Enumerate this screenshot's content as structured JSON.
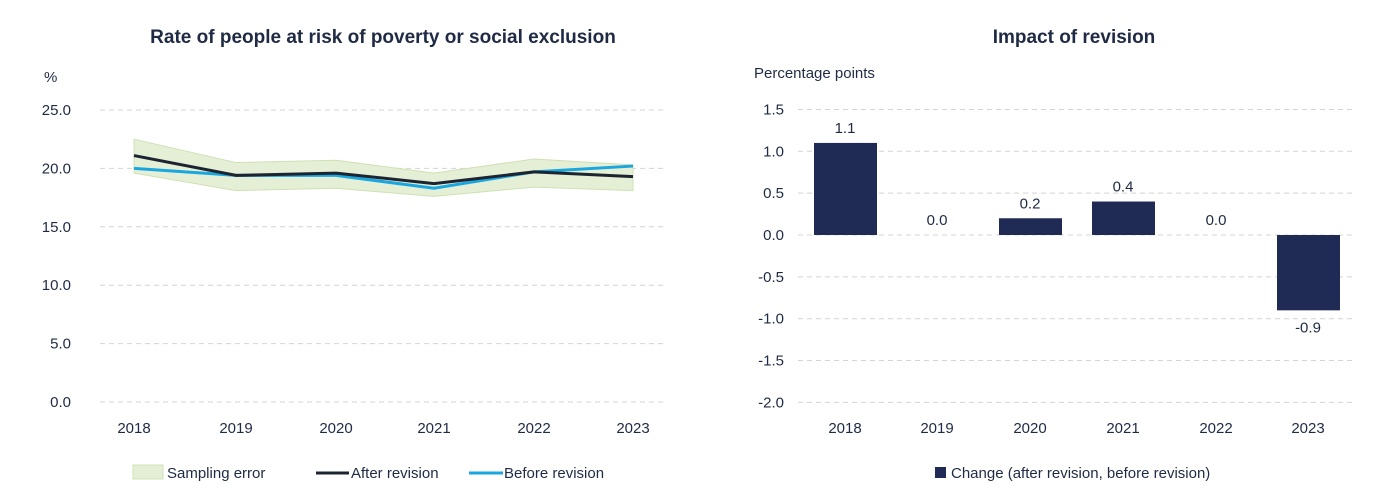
{
  "chart_data": [
    {
      "type": "line",
      "title": "Rate of people at risk of poverty or social exclusion",
      "ylabel": "%",
      "ylim": [
        0,
        25
      ],
      "yticks": [
        "0.0",
        "5.0",
        "10.0",
        "15.0",
        "20.0",
        "25.0"
      ],
      "categories": [
        "2018",
        "2019",
        "2020",
        "2021",
        "2022",
        "2023"
      ],
      "series": [
        {
          "name": "Sampling error",
          "type": "band",
          "upper": [
            22.5,
            20.5,
            20.7,
            19.6,
            20.8,
            20.3
          ],
          "lower": [
            19.6,
            18.1,
            18.3,
            17.6,
            18.4,
            18.1
          ],
          "color": "#e4efd6"
        },
        {
          "name": "After revision",
          "values": [
            21.1,
            19.4,
            19.6,
            18.7,
            19.7,
            19.3
          ],
          "color": "#1c2331"
        },
        {
          "name": "Before revision",
          "values": [
            20.0,
            19.4,
            19.4,
            18.3,
            19.7,
            20.2
          ],
          "color": "#1aa7e0"
        }
      ],
      "legend": "bottom"
    },
    {
      "type": "bar",
      "title": "Impact of revision",
      "ylabel": "Percentage points",
      "ylim": [
        -2,
        1.5
      ],
      "yticks": [
        "-2.0",
        "-1.5",
        "-1.0",
        "-0.5",
        "0.0",
        "0.5",
        "1.0",
        "1.5"
      ],
      "categories": [
        "2018",
        "2019",
        "2020",
        "2021",
        "2022",
        "2023"
      ],
      "series": [
        {
          "name": "Change (after revision, before revision)",
          "values": [
            1.1,
            0.0,
            0.2,
            0.4,
            0.0,
            -0.9
          ],
          "labels": [
            "1.1",
            "0.0",
            "0.2",
            "0.4",
            "0.0",
            "-0.9"
          ],
          "color": "#1f2a55"
        }
      ],
      "legend": "bottom"
    }
  ]
}
